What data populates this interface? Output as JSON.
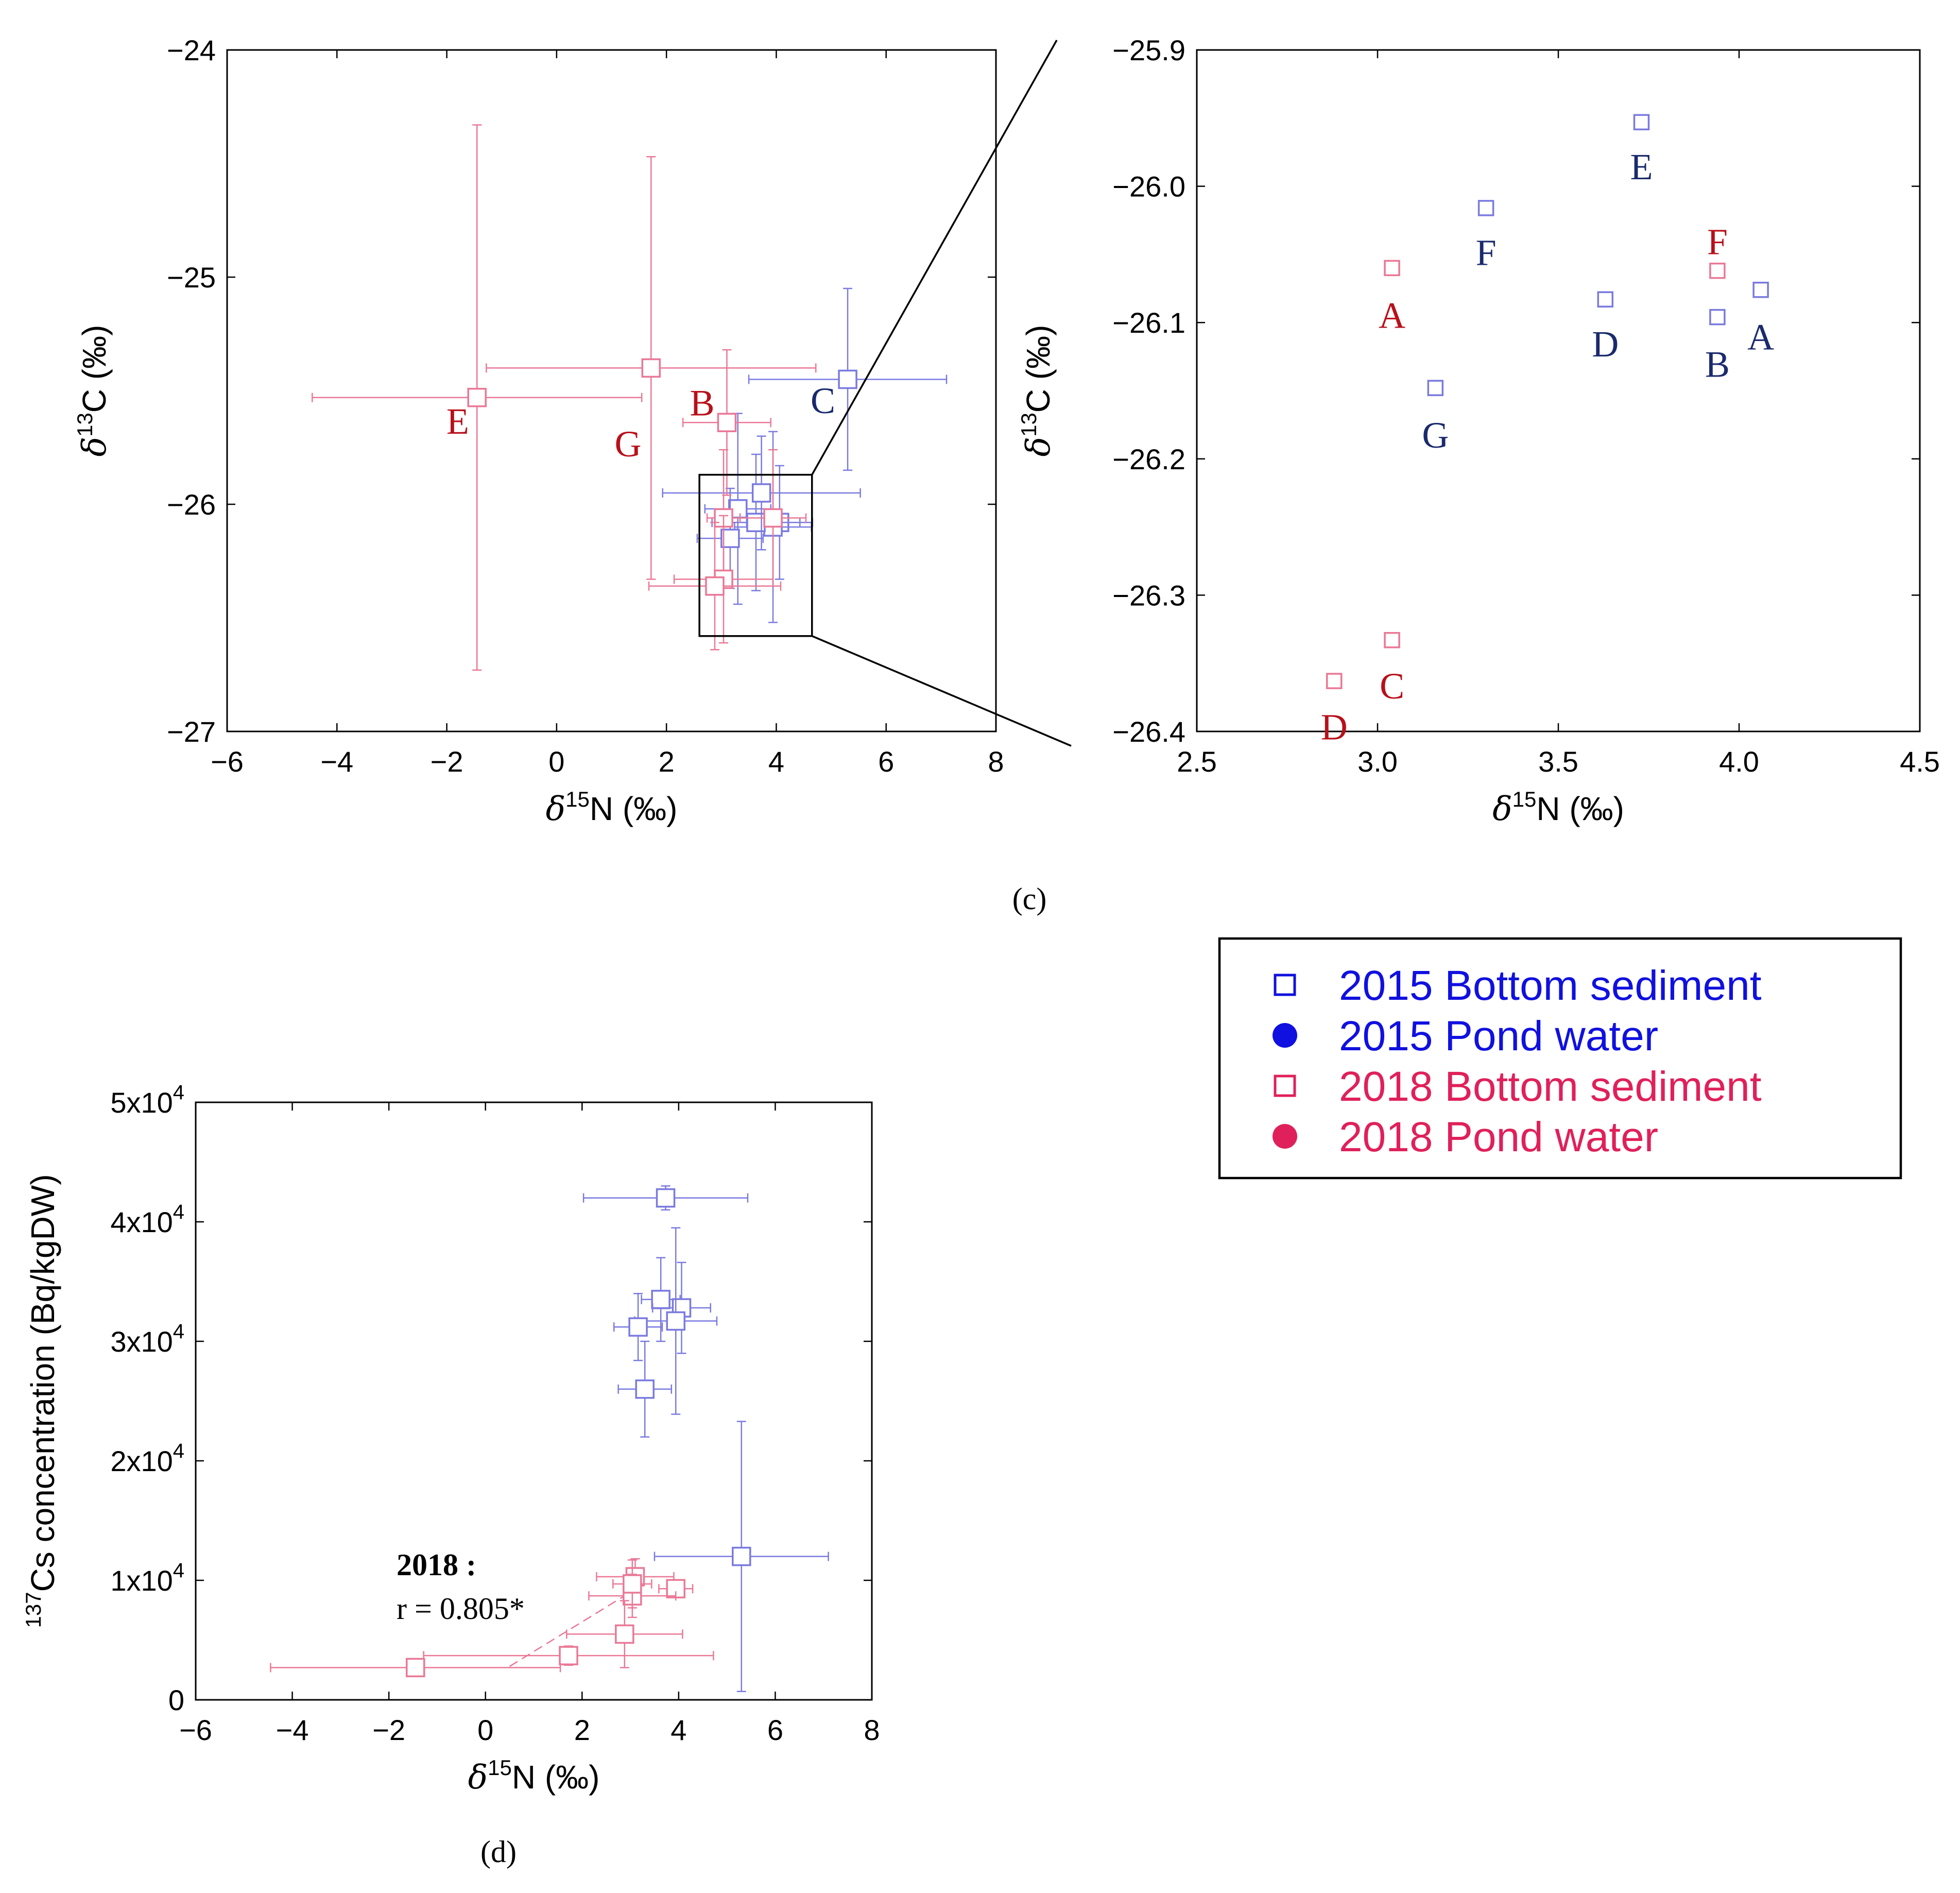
{
  "colors": {
    "c2015": "#7a7ae0",
    "c2018": "#ea7896",
    "lab2015": "#1a2a6c",
    "lab2018": "#b8101a",
    "legend2015": "#1010e0",
    "legend2018": "#e0205a"
  },
  "panel_labels": {
    "c": "(c)",
    "d": "(d)"
  },
  "legend": {
    "items": [
      {
        "label": "2015 Bottom sediment",
        "marker": "open-square",
        "series": "2015"
      },
      {
        "label": "2015 Pond water",
        "marker": "filled-circle",
        "series": "2015"
      },
      {
        "label": "2018 Bottom sediment",
        "marker": "open-square",
        "series": "2018"
      },
      {
        "label": "2018 Pond water",
        "marker": "filled-circle",
        "series": "2018"
      }
    ]
  },
  "chart_data": [
    {
      "id": "c-left",
      "type": "scatter",
      "xlabel": {
        "delta": "δ",
        "sup": "15",
        "rest": "N (‰)"
      },
      "ylabel": {
        "delta": "δ",
        "sup": "13",
        "rest": "C (‰)"
      },
      "xlim": [
        -6,
        8
      ],
      "ylim": [
        -27,
        -24
      ],
      "xticks": [
        -6,
        -4,
        -2,
        0,
        2,
        4,
        6,
        8
      ],
      "xtick_labels": [
        "−6",
        "−4",
        "−2",
        "0",
        "2",
        "4",
        "6",
        "8"
      ],
      "yticks": [
        -27,
        -26,
        -25,
        -24
      ],
      "ytick_labels": [
        "−27",
        "−26",
        "−25",
        "−24"
      ],
      "zoom_box": {
        "x": [
          2.6,
          4.65
        ],
        "y": [
          -26.58,
          -25.87
        ]
      },
      "series": [
        {
          "name": "2015 Bottom sediment",
          "points": [
            {
              "id": "A",
              "x": 4.06,
              "y": -26.08,
              "xerr": 0.6,
              "yerr": 0.25
            },
            {
              "id": "B",
              "x": 3.94,
              "y": -26.1,
              "xerr": 0.7,
              "yerr": 0.42
            },
            {
              "id": "C",
              "x": 5.3,
              "y": -25.45,
              "xerr": 1.8,
              "yerr": 0.4
            },
            {
              "id": "D",
              "x": 3.63,
              "y": -26.08,
              "xerr": 0.8,
              "yerr": 0.3
            },
            {
              "id": "E",
              "x": 3.73,
              "y": -25.95,
              "xerr": 1.8,
              "yerr": 0.25
            },
            {
              "id": "F",
              "x": 3.3,
              "y": -26.02,
              "xerr": 0.6,
              "yerr": 0.42
            },
            {
              "id": "G",
              "x": 3.16,
              "y": -26.15,
              "xerr": 0.6,
              "yerr": 0.22
            }
          ]
        },
        {
          "name": "2018 Bottom sediment",
          "points": [
            {
              "id": "A",
              "x": 3.04,
              "y": -26.06,
              "xerr": 0.3,
              "yerr": 0.3
            },
            {
              "id": "B",
              "x": 3.1,
              "y": -25.64,
              "xerr": 0.8,
              "yerr": 0.32
            },
            {
              "id": "C",
              "x": 3.04,
              "y": -26.33,
              "xerr": 0.9,
              "yerr": 0.28
            },
            {
              "id": "D",
              "x": 2.88,
              "y": -26.36,
              "xerr": 1.2,
              "yerr": 0.28
            },
            {
              "id": "E",
              "x": -1.45,
              "y": -25.53,
              "xerr": 3.0,
              "yerr": 1.2
            },
            {
              "id": "F",
              "x": 3.94,
              "y": -26.06,
              "xerr": 0.6,
              "yerr": 0.3
            },
            {
              "id": "G",
              "x": 1.72,
              "y": -25.4,
              "xerr": 3.0,
              "yerr": 0.93
            }
          ]
        }
      ],
      "labels": [
        {
          "text": "E",
          "series": "2018",
          "x": -1.8,
          "y": -25.63
        },
        {
          "text": "G",
          "series": "2018",
          "x": 1.3,
          "y": -25.73
        },
        {
          "text": "B",
          "series": "2018",
          "x": 2.65,
          "y": -25.55
        },
        {
          "text": "C",
          "series": "2015",
          "x": 4.85,
          "y": -25.54
        }
      ]
    },
    {
      "id": "c-right",
      "type": "scatter",
      "xlabel": {
        "delta": "δ",
        "sup": "15",
        "rest": "N (‰)"
      },
      "ylabel": {
        "delta": "δ",
        "sup": "13",
        "rest": "C (‰)"
      },
      "xlim": [
        2.5,
        4.5
      ],
      "ylim": [
        -26.4,
        -25.9
      ],
      "xticks": [
        2.5,
        3.0,
        3.5,
        4.0,
        4.5
      ],
      "xtick_labels": [
        "2.5",
        "3.0",
        "3.5",
        "4.0",
        "4.5"
      ],
      "yticks": [
        -26.4,
        -26.3,
        -26.2,
        -26.1,
        -26.0,
        -25.9
      ],
      "ytick_labels": [
        "−26.4",
        "−26.3",
        "−26.2",
        "−26.1",
        "−26.0",
        "−25.9"
      ],
      "series": [
        {
          "name": "2015 Bottom sediment",
          "points": [
            {
              "id": "A",
              "x": 4.06,
              "y": -26.076,
              "label_x": 4.06,
              "label_y": -26.11
            },
            {
              "id": "B",
              "x": 3.94,
              "y": -26.096,
              "label_x": 3.94,
              "label_y": -26.13
            },
            {
              "id": "D",
              "x": 3.63,
              "y": -26.083,
              "label_x": 3.63,
              "label_y": -26.115
            },
            {
              "id": "E",
              "x": 3.73,
              "y": -25.953,
              "label_x": 3.73,
              "label_y": -25.985
            },
            {
              "id": "F",
              "x": 3.3,
              "y": -26.016,
              "label_x": 3.3,
              "label_y": -26.048
            },
            {
              "id": "G",
              "x": 3.16,
              "y": -26.148,
              "label_x": 3.16,
              "label_y": -26.182
            }
          ]
        },
        {
          "name": "2018 Bottom sediment",
          "points": [
            {
              "id": "A",
              "x": 3.04,
              "y": -26.06,
              "label_x": 3.04,
              "label_y": -26.094
            },
            {
              "id": "C",
              "x": 3.04,
              "y": -26.333,
              "label_x": 3.04,
              "label_y": -26.366
            },
            {
              "id": "D",
              "x": 2.88,
              "y": -26.363,
              "label_x": 2.88,
              "label_y": -26.396
            },
            {
              "id": "F",
              "x": 3.94,
              "y": -26.062,
              "label_x": 3.94,
              "label_y": -26.04
            }
          ]
        }
      ]
    },
    {
      "id": "d",
      "type": "scatter",
      "xlabel": {
        "delta": "δ",
        "sup": "15",
        "rest": "N (‰)"
      },
      "ylabel": {
        "sup": "137",
        "rest": "Cs concentration (Bq/kgDW)"
      },
      "xlim": [
        -6,
        8
      ],
      "ylim": [
        0,
        50000
      ],
      "xticks": [
        -6,
        -4,
        -2,
        0,
        2,
        4,
        6,
        8
      ],
      "xtick_labels": [
        "−6",
        "−4",
        "−2",
        "0",
        "2",
        "4",
        "6",
        "8"
      ],
      "yticks": [
        0,
        10000,
        20000,
        30000,
        40000,
        50000
      ],
      "ytick_labels": [
        {
          "base": "0",
          "exp": ""
        },
        {
          "base": "1x10",
          "exp": "4"
        },
        {
          "base": "2x10",
          "exp": "4"
        },
        {
          "base": "3x10",
          "exp": "4"
        },
        {
          "base": "4x10",
          "exp": "4"
        },
        {
          "base": "5x10",
          "exp": "4"
        }
      ],
      "annotation": {
        "line1": "2018 :",
        "line2": "r = 0.805*"
      },
      "regression_2018": {
        "x": [
          0.5,
          3.2
        ],
        "y": [
          2800,
          9500
        ]
      },
      "series": [
        {
          "name": "2015 Bottom sediment",
          "points": [
            {
              "x": 3.73,
              "y": 42000,
              "xerr": 1.7,
              "yerr": 1000
            },
            {
              "x": 3.63,
              "y": 33500,
              "xerr": 0.4,
              "yerr": 3500
            },
            {
              "x": 4.06,
              "y": 32800,
              "xerr": 0.6,
              "yerr": 3800
            },
            {
              "x": 3.94,
              "y": 31700,
              "xerr": 0.85,
              "yerr": 7800
            },
            {
              "x": 3.16,
              "y": 31200,
              "xerr": 0.5,
              "yerr": 2800
            },
            {
              "x": 3.3,
              "y": 26000,
              "xerr": 0.55,
              "yerr": 4000
            },
            {
              "x": 5.3,
              "y": 12000,
              "xerr": 1.8,
              "yerr": 11300
            }
          ]
        },
        {
          "name": "2018 Bottom sediment",
          "points": [
            {
              "x": 3.1,
              "y": 10300,
              "xerr": 0.8,
              "yerr": 1500
            },
            {
              "x": 3.94,
              "y": 9300,
              "xerr": 0.35,
              "yerr": 700
            },
            {
              "x": 3.04,
              "y": 8700,
              "xerr": 0.9,
              "yerr": 1800
            },
            {
              "x": 2.88,
              "y": 5500,
              "xerr": 1.2,
              "yerr": 2800
            },
            {
              "x": 1.72,
              "y": 3700,
              "xerr": 3.0,
              "yerr": 800
            },
            {
              "x": -1.45,
              "y": 2700,
              "xerr": 3.0,
              "yerr": 300
            },
            {
              "x": 3.04,
              "y": 9700,
              "xerr": 0.4,
              "yerr": 2000
            }
          ]
        }
      ]
    }
  ]
}
